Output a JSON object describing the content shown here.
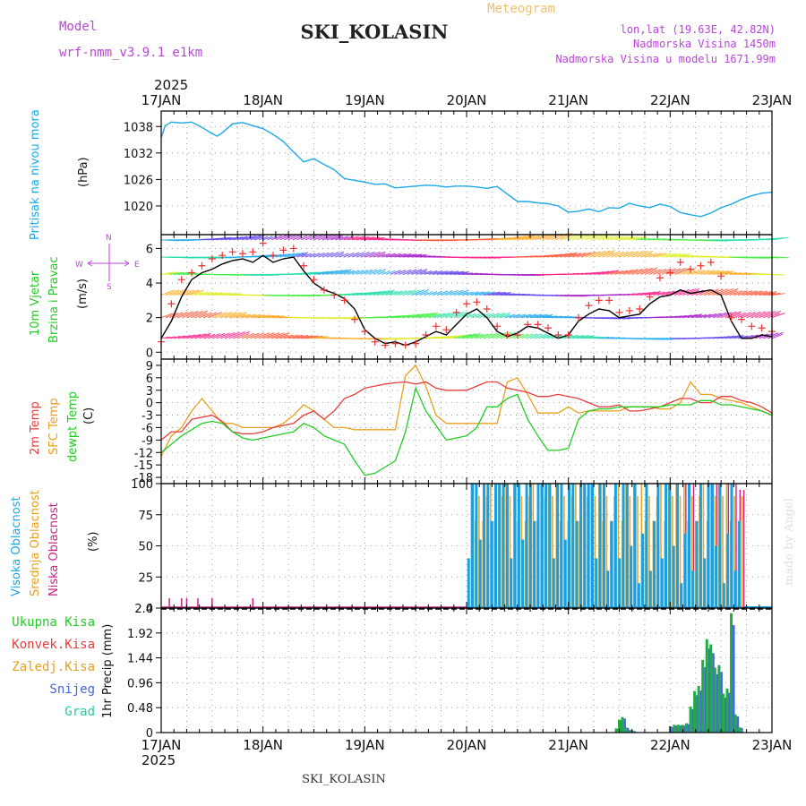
{
  "header": {
    "title": "SKI_KOLASIN",
    "meteogram_label": "Meteogram",
    "model_label": "Model",
    "model_name": "wrf-nmm_v3.9.1 e1km",
    "lonlat": "lon,lat (19.63E, 42.82N)",
    "elevation": "Nadmorska Visina 1450m",
    "model_elevation": "Nadmorska Visina u modelu 1671.99m",
    "year_top": "2025",
    "year_bottom": "2025",
    "footer": "SKI_KOLASIN",
    "credit": "made by Angel"
  },
  "colors": {
    "pressure": "#1aa8e8",
    "wind_line": "#000000",
    "wind_gust": "#ee3333",
    "temp2m": "#e83c3c",
    "sfc_temp": "#e8a020",
    "dewpt": "#22cc22",
    "high_cloud": "#1aa0e0",
    "mid_cloud": "#e0a830",
    "low_cloud": "#cc2288",
    "total_precip": "#22aa44",
    "snow": "#4466dd",
    "label_cyan": "#1aa8e8",
    "label_green": "#22cc22",
    "label_magenta": "#cc2288",
    "label_purple": "#bb44dd",
    "label_orange": "#e8a020",
    "label_red": "#e83c3c",
    "label_grad": "#22ccaa"
  },
  "chart_data": [
    {
      "type": "line",
      "id": "pressure",
      "ylabel_lines": [
        "Pritisak na nivou mora",
        "(hPa)"
      ],
      "yticks": [
        1020,
        1026,
        1032,
        1038
      ],
      "ylim": [
        1013.5,
        1041.5
      ],
      "x_days": [
        0,
        0.04,
        0.1,
        0.2,
        0.3,
        0.4,
        0.5,
        0.55,
        0.6,
        0.7,
        0.8,
        0.9,
        1.0,
        1.1,
        1.2,
        1.3,
        1.4,
        1.5,
        1.6,
        1.7,
        1.8,
        1.9,
        2.0,
        2.1,
        2.2,
        2.3,
        2.4,
        2.5,
        2.6,
        2.7,
        2.8,
        2.9,
        3.0,
        3.1,
        3.2,
        3.3,
        3.4,
        3.5,
        3.6,
        3.7,
        3.8,
        3.9,
        4.0,
        4.1,
        4.2,
        4.3,
        4.4,
        4.5,
        4.6,
        4.7,
        4.8,
        4.9,
        5.0,
        5.1,
        5.2,
        5.3,
        5.4,
        5.5,
        5.6,
        5.7,
        5.8,
        5.9,
        6.0
      ],
      "values": [
        1035.5,
        1038.2,
        1039.0,
        1038.8,
        1039.0,
        1037.8,
        1036.4,
        1035.8,
        1036.6,
        1038.6,
        1038.9,
        1038.2,
        1037.5,
        1036.2,
        1034.6,
        1032.2,
        1030.0,
        1030.7,
        1029.4,
        1028.2,
        1026.2,
        1025.8,
        1025.4,
        1024.9,
        1025.0,
        1024.1,
        1024.3,
        1024.5,
        1024.7,
        1024.6,
        1024.3,
        1024.5,
        1024.5,
        1024.3,
        1024.0,
        1024.4,
        1022.7,
        1021.0,
        1021.0,
        1020.7,
        1020.5,
        1020.0,
        1018.6,
        1018.8,
        1019.3,
        1018.7,
        1019.6,
        1019.5,
        1020.6,
        1020.0,
        1019.6,
        1020.4,
        1019.9,
        1018.5,
        1018.0,
        1017.6,
        1018.4,
        1019.6,
        1020.4,
        1021.5,
        1022.3,
        1022.9,
        1023.1
      ]
    },
    {
      "type": "line",
      "id": "wind",
      "ylabel_lines": [
        "10m Vjetar",
        "Brzina i Pravac",
        "(m/s)"
      ],
      "compass": [
        "N",
        "S",
        "W",
        "E"
      ],
      "yticks": [
        0,
        2,
        4,
        6
      ],
      "ylim": [
        -0.4,
        6.8
      ],
      "x_days": [
        0,
        0.1,
        0.2,
        0.3,
        0.4,
        0.5,
        0.6,
        0.7,
        0.8,
        0.9,
        1.0,
        1.1,
        1.2,
        1.3,
        1.4,
        1.5,
        1.6,
        1.7,
        1.8,
        1.9,
        2.0,
        2.1,
        2.2,
        2.3,
        2.4,
        2.5,
        2.6,
        2.7,
        2.8,
        2.9,
        3.0,
        3.1,
        3.2,
        3.3,
        3.4,
        3.5,
        3.6,
        3.7,
        3.8,
        3.9,
        4.0,
        4.1,
        4.2,
        4.3,
        4.4,
        4.5,
        4.6,
        4.7,
        4.8,
        4.9,
        5.0,
        5.1,
        5.2,
        5.3,
        5.4,
        5.5,
        5.6,
        5.7,
        5.8,
        5.9,
        6.0
      ],
      "speed": [
        0.8,
        1.8,
        3.2,
        4.2,
        4.6,
        4.8,
        5.1,
        5.3,
        5.4,
        5.2,
        5.6,
        5.2,
        5.4,
        5.5,
        4.7,
        4.0,
        3.6,
        3.4,
        3.1,
        2.5,
        1.3,
        0.8,
        0.5,
        0.6,
        0.4,
        0.6,
        0.9,
        1.2,
        1.0,
        1.6,
        2.2,
        2.5,
        2.0,
        1.2,
        0.9,
        1.1,
        1.5,
        1.4,
        1.1,
        0.8,
        1.0,
        1.8,
        2.2,
        2.5,
        2.4,
        2.0,
        2.1,
        2.2,
        2.8,
        3.2,
        3.3,
        3.6,
        3.4,
        3.5,
        3.6,
        3.3,
        1.8,
        0.8,
        0.8,
        1.0,
        0.9
      ],
      "gust": [
        0.6,
        2.8,
        4.2,
        4.6,
        5.0,
        5.4,
        5.6,
        5.8,
        5.7,
        5.8,
        6.3,
        5.6,
        5.9,
        6.0,
        5.0,
        4.2,
        3.6,
        3.3,
        3.0,
        1.9,
        1.2,
        0.6,
        0.4,
        0.5,
        0.4,
        0.5,
        1.0,
        1.5,
        1.3,
        2.3,
        2.8,
        2.9,
        2.5,
        1.5,
        1.0,
        1.0,
        1.6,
        1.6,
        1.4,
        1.0,
        1.0,
        2.0,
        2.7,
        3.0,
        3.0,
        2.3,
        2.4,
        2.5,
        3.2,
        4.3,
        4.6,
        5.2,
        4.8,
        5.0,
        5.2,
        4.4,
        2.0,
        1.9,
        1.5,
        1.4,
        1.2
      ],
      "barb_rows": [
        0.8,
        2.0,
        3.3,
        4.5,
        5.5,
        6.5
      ],
      "barb_direction": "mostly easterly, bands of varying intensity"
    },
    {
      "type": "line",
      "id": "temperature",
      "ylabel_lines": [
        "2m Temp",
        "SFC Temp",
        "dewpt Temp",
        "(C)"
      ],
      "yticks": [
        -18,
        -15,
        -12,
        -9,
        -6,
        -3,
        0,
        3,
        6,
        9
      ],
      "ylim": [
        -19.5,
        10.5
      ],
      "x_days": [
        0,
        0.1,
        0.2,
        0.3,
        0.4,
        0.5,
        0.6,
        0.7,
        0.8,
        0.9,
        1.0,
        1.1,
        1.2,
        1.3,
        1.4,
        1.5,
        1.6,
        1.7,
        1.8,
        1.9,
        2.0,
        2.1,
        2.2,
        2.3,
        2.4,
        2.5,
        2.6,
        2.7,
        2.8,
        2.9,
        3.0,
        3.1,
        3.2,
        3.3,
        3.4,
        3.5,
        3.6,
        3.7,
        3.8,
        3.9,
        4.0,
        4.1,
        4.2,
        4.3,
        4.4,
        4.5,
        4.6,
        4.7,
        4.8,
        4.9,
        5.0,
        5.1,
        5.2,
        5.3,
        5.4,
        5.5,
        5.6,
        5.7,
        5.8,
        5.9,
        6.0
      ],
      "t2m": [
        -9,
        -7,
        -7,
        -4,
        -3.5,
        -3,
        -4.5,
        -7,
        -7.5,
        -7.5,
        -7,
        -6,
        -5.5,
        -5,
        -3,
        -2,
        -4,
        -2,
        1,
        2,
        3.5,
        4,
        4.5,
        4.8,
        5,
        4.5,
        5,
        3.5,
        3,
        3,
        3,
        4,
        5,
        5,
        3.5,
        3,
        2.5,
        1.5,
        1.5,
        2,
        1.5,
        1,
        0,
        -1,
        -1,
        -0.5,
        -2,
        -2,
        -1.5,
        -1,
        0,
        1,
        1,
        0,
        0,
        1.5,
        1.5,
        0.5,
        0,
        -1,
        -2.5
      ],
      "sfc": [
        -13,
        -8,
        -6,
        -2,
        1,
        -2,
        -5,
        -5,
        -6,
        -6,
        -6,
        -6,
        -5,
        -3,
        -0.5,
        -2,
        -4,
        -6,
        -6,
        -6.5,
        -6.5,
        -6.5,
        -6.5,
        -6.5,
        6.5,
        9,
        4,
        -3,
        -5,
        -5,
        -5,
        -5,
        -5,
        -5,
        5,
        6,
        2,
        -2.5,
        -2.5,
        -2.5,
        -1,
        -2.5,
        -2,
        -2,
        -2,
        -2,
        -1,
        -1,
        -1,
        -1.5,
        -1.5,
        0,
        5,
        2,
        2,
        1,
        0.5,
        0,
        -1,
        -2,
        -3
      ],
      "dewpt": [
        -12,
        -10,
        -8,
        -6.5,
        -5,
        -4.5,
        -5,
        -7,
        -8.5,
        -9,
        -8.5,
        -8,
        -7.5,
        -7,
        -5,
        -6,
        -8,
        -9,
        -10,
        -14,
        -17.5,
        -17,
        -15.5,
        -14,
        -7,
        3.5,
        -2,
        -5.5,
        -9,
        -8.5,
        -8,
        -6,
        -1,
        -1,
        1,
        2,
        -4,
        -8,
        -11.5,
        -11.5,
        -11,
        -4,
        -2,
        -1.5,
        -1.5,
        -1,
        -1,
        -1,
        -1,
        -1,
        -0.5,
        -0.5,
        -0.5,
        0.5,
        0.5,
        -0.5,
        -0.5,
        -1,
        -1.5,
        -2,
        -3
      ]
    },
    {
      "type": "bar",
      "id": "clouds",
      "ylabel_lines": [
        "Visoka Oblacnost",
        "Srednja Oblacnost",
        "Niska Oblacnost",
        "(%)"
      ],
      "yticks": [
        0,
        25,
        50,
        75,
        100
      ],
      "ylim": [
        0,
        100
      ],
      "series": [
        {
          "name": "Visoka Oblacnost",
          "color_key": "high_cloud"
        },
        {
          "name": "Srednja Oblacnost",
          "color_key": "mid_cloud"
        },
        {
          "name": "Niska Oblacnost",
          "color_key": "low_cloud"
        }
      ]
    },
    {
      "type": "bar",
      "id": "precip",
      "ylabel_lines": [
        "1hr Precip (mm)"
      ],
      "yticks": [
        0,
        0.48,
        0.96,
        1.44,
        1.92,
        2.4
      ],
      "ylim": [
        0,
        2.4
      ],
      "series": [
        {
          "name": "Ukupna Kisa",
          "color_key": "total_precip"
        },
        {
          "name": "Konvek.Kisa",
          "color_key": "label_red"
        },
        {
          "name": "Zaledj.Kisa",
          "color_key": "label_orange"
        },
        {
          "name": "Snijeg",
          "color_key": "snow"
        },
        {
          "name": "Grad",
          "color_key": "label_grad"
        }
      ],
      "x_days": [
        4.47,
        4.5,
        4.53,
        4.56,
        4.6,
        4.63,
        5.0,
        5.04,
        5.08,
        5.12,
        5.16,
        5.2,
        5.24,
        5.28,
        5.32,
        5.36,
        5.4,
        5.44,
        5.48,
        5.52,
        5.56,
        5.6,
        5.64,
        5.68
      ],
      "values": [
        0.08,
        0.25,
        0.3,
        0.1,
        0.05,
        0.03,
        0.12,
        0.15,
        0.15,
        0.15,
        0.18,
        0.5,
        0.8,
        0.9,
        1.4,
        1.8,
        1.7,
        1.25,
        1.3,
        0.75,
        0.85,
        2.3,
        0.35,
        0.1
      ]
    }
  ],
  "x_axis": {
    "labels": [
      "17JAN",
      "18JAN",
      "19JAN",
      "20JAN",
      "21JAN",
      "22JAN",
      "23JAN"
    ]
  }
}
